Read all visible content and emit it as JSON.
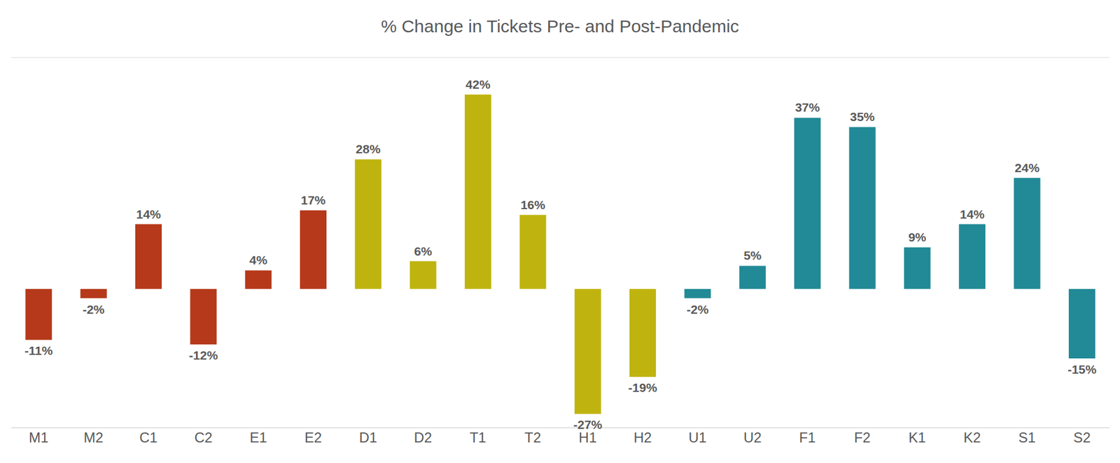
{
  "chart_data": {
    "type": "bar",
    "title": "% Change in Tickets Pre- and Post-Pandemic",
    "categories": [
      "M1",
      "M2",
      "C1",
      "C2",
      "E1",
      "E2",
      "D1",
      "D2",
      "T1",
      "T2",
      "H1",
      "H2",
      "U1",
      "U2",
      "F1",
      "F2",
      "K1",
      "K2",
      "S1",
      "S2"
    ],
    "values": [
      -11,
      -2,
      14,
      -12,
      4,
      17,
      28,
      6,
      42,
      16,
      -27,
      -19,
      -2,
      5,
      37,
      35,
      9,
      14,
      24,
      -15
    ],
    "value_labels": [
      "-11%",
      "-2%",
      "14%",
      "-12%",
      "4%",
      "17%",
      "28%",
      "6%",
      "42%",
      "16%",
      "-27%",
      "-19%",
      "-2%",
      "5%",
      "37%",
      "35%",
      "9%",
      "14%",
      "24%",
      "-15%"
    ],
    "colors": [
      "#b5391a",
      "#b5391a",
      "#b5391a",
      "#b5391a",
      "#b5391a",
      "#b5391a",
      "#bfb40f",
      "#bfb40f",
      "#bfb40f",
      "#bfb40f",
      "#bfb40f",
      "#bfb40f",
      "#218a96",
      "#218a96",
      "#218a96",
      "#218a96",
      "#218a96",
      "#218a96",
      "#218a96",
      "#218a96"
    ],
    "ylim": [
      -30,
      50
    ],
    "yticks": [
      -30,
      -20,
      -10,
      0,
      10,
      20,
      30,
      40,
      50
    ],
    "grid": true,
    "data_labels": true,
    "tick_labels": "x"
  }
}
